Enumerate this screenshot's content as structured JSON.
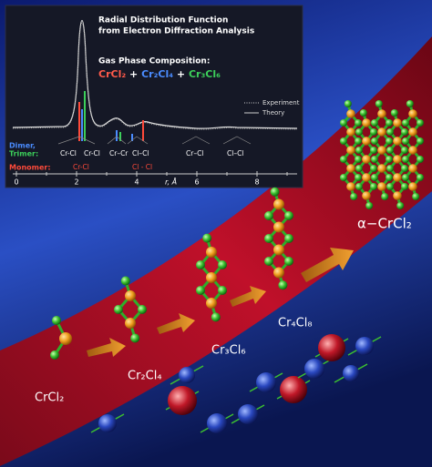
{
  "inset": {
    "title_lines": [
      "Radial Distribution Function",
      "from Electron Diffraction Analysis"
    ],
    "composition_heading": "Gas Phase Composition:",
    "composition": [
      "CrCl₂",
      "+",
      "Cr₂Cl₄",
      "+",
      "Cr₃Cl₆"
    ],
    "legend": [
      "Experiment",
      "Theory"
    ],
    "row_labels": [
      "Dimer,",
      "Trimer:",
      "Monomer:"
    ],
    "peak_labels": [
      "Cr-Cl",
      "Cr-Cl",
      "Cr–Cr",
      "Cl–Cl",
      "Cr–Cl",
      "Cl–Cl"
    ],
    "monomer_peak_labels": [
      "Cr-Cl",
      "Cl - Cl"
    ],
    "axis_ticks": [
      "0",
      "2",
      "4",
      "6",
      "8"
    ],
    "axis_label": "r, Å"
  },
  "molecules": [
    "CrCl₂",
    "Cr₂Cl₄",
    "Cr₃Cl₆",
    "Cr₄Cl₈",
    "α−CrCl₂"
  ]
}
